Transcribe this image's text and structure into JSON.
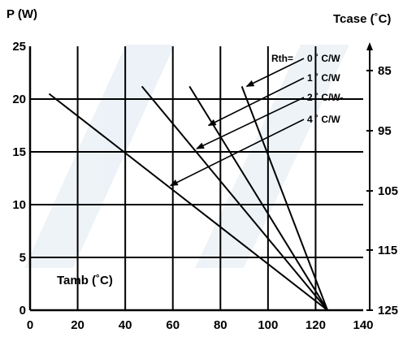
{
  "chart_data": {
    "type": "line",
    "title": "",
    "ylabel": "P (W)",
    "y2label": "Tcase (˚C)",
    "xlabel": "Tamb (˚C)",
    "xlim": [
      0,
      140
    ],
    "ylim": [
      0,
      25
    ],
    "x_ticks": [
      "0",
      "20",
      "40",
      "60",
      "80",
      "100",
      "120",
      "140"
    ],
    "y_ticks": [
      "0",
      "5",
      "10",
      "15",
      "20",
      "25"
    ],
    "y2_ticks": [
      {
        "label": "85",
        "p": 22.7
      },
      {
        "label": "95",
        "p": 17.0
      },
      {
        "label": "105",
        "p": 11.3
      },
      {
        "label": "115",
        "p": 5.7
      },
      {
        "label": "125",
        "p": 0
      }
    ],
    "grid": true,
    "legend_prefix": "Rth=",
    "series": [
      {
        "name": "0 ˚ C/W",
        "x": [
          89,
          125
        ],
        "y": [
          21.2,
          0
        ],
        "label_anchor": [
          91,
          21.2
        ]
      },
      {
        "name": "1 ˚ C/W",
        "x": [
          67,
          125
        ],
        "y": [
          21.2,
          0
        ],
        "label_anchor": [
          75,
          17.5
        ]
      },
      {
        "name": "2 ˚ C/W-",
        "x": [
          47,
          125
        ],
        "y": [
          21.2,
          0
        ],
        "label_anchor": [
          70,
          15.3
        ]
      },
      {
        "name": "4 ˚ C/W",
        "x": [
          8,
          125
        ],
        "y": [
          20.5,
          0
        ],
        "label_anchor": [
          59,
          11.8
        ]
      }
    ]
  }
}
